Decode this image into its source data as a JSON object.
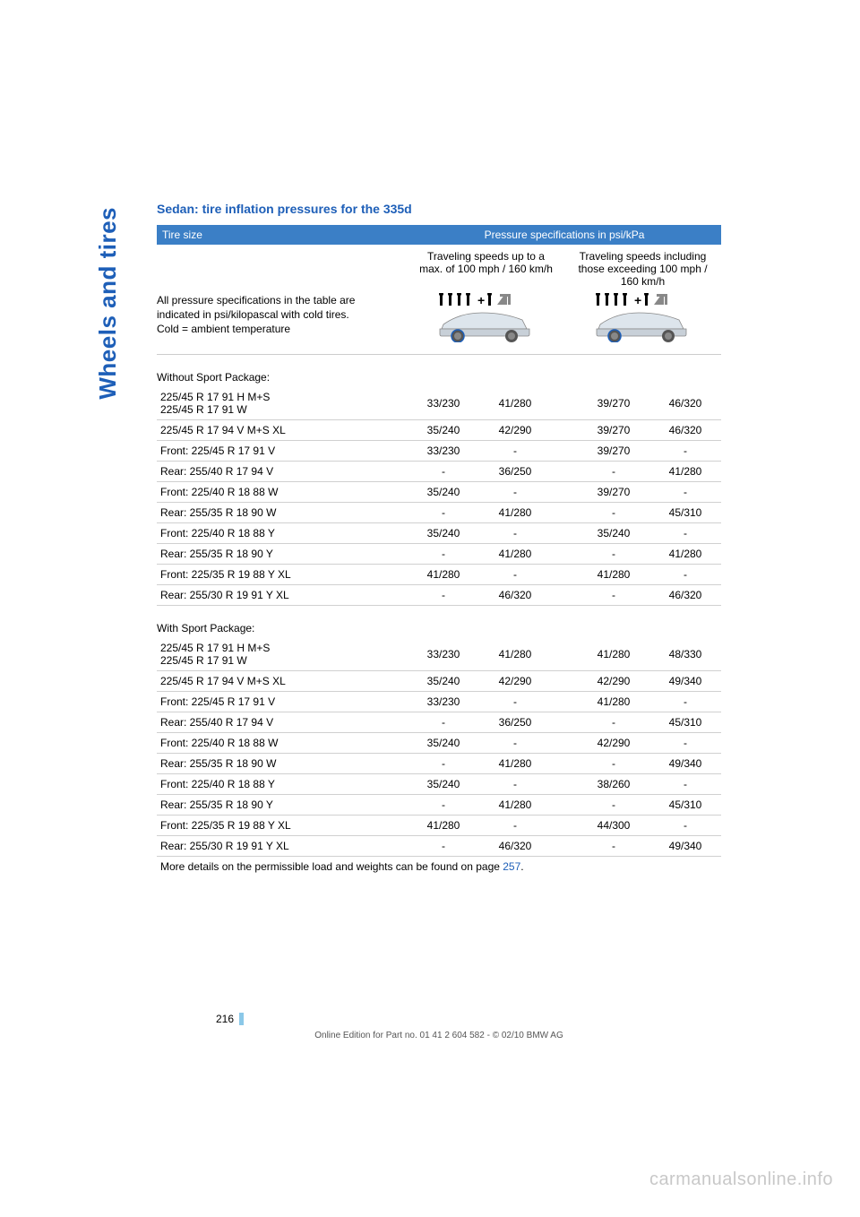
{
  "sideTab": "Wheels and tires",
  "sectionTitle": "Sedan: tire inflation pressures for the 335d",
  "headerLeft": "Tire size",
  "headerRight": "Pressure specifications in psi/kPa",
  "colHead1": "Traveling speeds up to a max. of 100 mph / 160 km/h",
  "colHead2": "Traveling speeds including those exceeding 100 mph / 160 km/h",
  "noteLine1": "All pressure specifications in the table are indicated in psi/kilopascal with cold tires.",
  "noteLine2": "Cold = ambient temperature",
  "labelWithout": "Without Sport Package:",
  "labelWith": "With Sport Package:",
  "withoutRows": [
    {
      "tire": "225/45 R 17 91 H M+S\n225/45 R 17 91 W",
      "a": "33/230",
      "b": "41/280",
      "c": "39/270",
      "d": "46/320"
    },
    {
      "tire": "225/45 R 17 94 V M+S XL",
      "a": "35/240",
      "b": "42/290",
      "c": "39/270",
      "d": "46/320"
    },
    {
      "tire": "Front: 225/45 R 17 91 V",
      "a": "33/230",
      "b": "-",
      "c": "39/270",
      "d": "-"
    },
    {
      "tire": "Rear: 255/40 R 17 94 V",
      "a": "-",
      "b": "36/250",
      "c": "-",
      "d": "41/280"
    },
    {
      "tire": "Front: 225/40 R 18 88 W",
      "a": "35/240",
      "b": "-",
      "c": "39/270",
      "d": "-"
    },
    {
      "tire": "Rear: 255/35 R 18 90 W",
      "a": "-",
      "b": "41/280",
      "c": "-",
      "d": "45/310"
    },
    {
      "tire": "Front: 225/40 R 18 88 Y",
      "a": "35/240",
      "b": "-",
      "c": "35/240",
      "d": "-"
    },
    {
      "tire": "Rear: 255/35 R 18 90 Y",
      "a": "-",
      "b": "41/280",
      "c": "-",
      "d": "41/280"
    },
    {
      "tire": "Front: 225/35 R 19 88 Y XL",
      "a": "41/280",
      "b": "-",
      "c": "41/280",
      "d": "-"
    },
    {
      "tire": "Rear: 255/30 R 19 91 Y XL",
      "a": "-",
      "b": "46/320",
      "c": "-",
      "d": "46/320"
    }
  ],
  "withRows": [
    {
      "tire": "225/45 R 17 91 H M+S\n225/45 R 17 91 W",
      "a": "33/230",
      "b": "41/280",
      "c": "41/280",
      "d": "48/330"
    },
    {
      "tire": "225/45 R 17 94 V M+S XL",
      "a": "35/240",
      "b": "42/290",
      "c": "42/290",
      "d": "49/340"
    },
    {
      "tire": "Front: 225/45 R 17 91 V",
      "a": "33/230",
      "b": "-",
      "c": "41/280",
      "d": "-"
    },
    {
      "tire": "Rear: 255/40 R 17 94 V",
      "a": "-",
      "b": "36/250",
      "c": "-",
      "d": "45/310"
    },
    {
      "tire": "Front: 225/40 R 18 88 W",
      "a": "35/240",
      "b": "-",
      "c": "42/290",
      "d": "-"
    },
    {
      "tire": "Rear: 255/35 R 18 90 W",
      "a": "-",
      "b": "41/280",
      "c": "-",
      "d": "49/340"
    },
    {
      "tire": "Front: 225/40 R 18 88 Y",
      "a": "35/240",
      "b": "-",
      "c": "38/260",
      "d": "-"
    },
    {
      "tire": "Rear: 255/35 R 18 90 Y",
      "a": "-",
      "b": "41/280",
      "c": "-",
      "d": "45/310"
    },
    {
      "tire": "Front: 225/35 R 19 88 Y XL",
      "a": "41/280",
      "b": "-",
      "c": "44/300",
      "d": "-"
    },
    {
      "tire": "Rear: 255/30 R 19 91 Y XL",
      "a": "-",
      "b": "46/320",
      "c": "-",
      "d": "49/340"
    }
  ],
  "footnoteText": "More details on the permissible load and weights can be found on page ",
  "footnoteLink": "257",
  "footnoteAfter": ".",
  "pageNum": "216",
  "copyright": "Online Edition for Part no. 01 41 2 604 582 - © 02/10 BMW AG",
  "watermark": "carmanualsonline.info",
  "colors": {
    "blue": "#1e5fb8",
    "bandBlue": "#3b7fc6",
    "lightBlue": "#8bc8e8",
    "border": "#d0d0d0"
  }
}
